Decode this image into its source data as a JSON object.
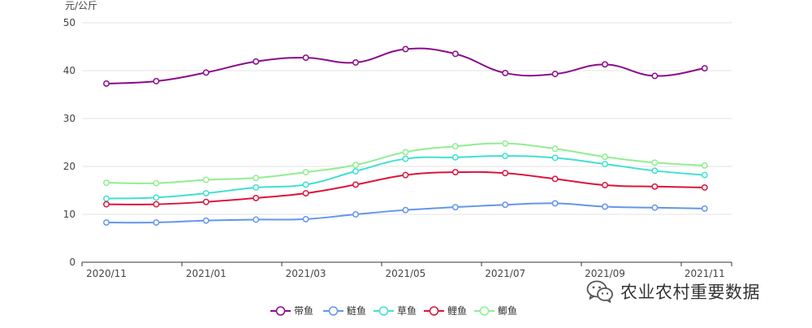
{
  "watermark": {
    "text": "农业农村重要数据",
    "icon": "wechat-icon"
  },
  "chart_data": {
    "type": "line",
    "title": "",
    "xlabel": "",
    "ylabel": "元/公斤",
    "ylim": [
      0,
      50
    ],
    "yticks": [
      0,
      10,
      20,
      30,
      40,
      50
    ],
    "x": [
      "2020/11",
      "2020/12",
      "2021/01",
      "2021/02",
      "2021/03",
      "2021/04",
      "2021/05",
      "2021/06",
      "2021/07",
      "2021/08",
      "2021/09",
      "2021/10",
      "2021/11"
    ],
    "xtick_labels": [
      "2020/11",
      "2021/01",
      "2021/03",
      "2021/05",
      "2021/07",
      "2021/09",
      "2021/11"
    ],
    "grid": true,
    "legend_position": "bottom-center",
    "series": [
      {
        "name": "带鱼",
        "color": "#8B0A8B",
        "values": [
          37.3,
          37.8,
          39.6,
          41.9,
          42.7,
          41.7,
          44.5,
          43.5,
          39.5,
          39.3,
          41.3,
          38.9,
          40.5
        ]
      },
      {
        "name": "鲢鱼",
        "color": "#6495ED",
        "values": [
          8.3,
          8.3,
          8.7,
          8.9,
          9.0,
          10.0,
          10.9,
          11.5,
          12.0,
          12.3,
          11.6,
          11.4,
          11.2
        ]
      },
      {
        "name": "草鱼",
        "color": "#40E0D0",
        "values": [
          13.3,
          13.5,
          14.4,
          15.6,
          16.2,
          19.0,
          21.6,
          21.9,
          22.2,
          21.8,
          20.5,
          19.1,
          18.2
        ]
      },
      {
        "name": "鲤鱼",
        "color": "#DC143C",
        "values": [
          12.1,
          12.1,
          12.6,
          13.4,
          14.4,
          16.2,
          18.2,
          18.8,
          18.6,
          17.4,
          16.1,
          15.8,
          15.6
        ]
      },
      {
        "name": "鲫鱼",
        "color": "#90EE90",
        "values": [
          16.6,
          16.5,
          17.2,
          17.6,
          18.8,
          20.3,
          23.0,
          24.2,
          24.8,
          23.7,
          22.0,
          20.8,
          20.2
        ]
      }
    ]
  }
}
